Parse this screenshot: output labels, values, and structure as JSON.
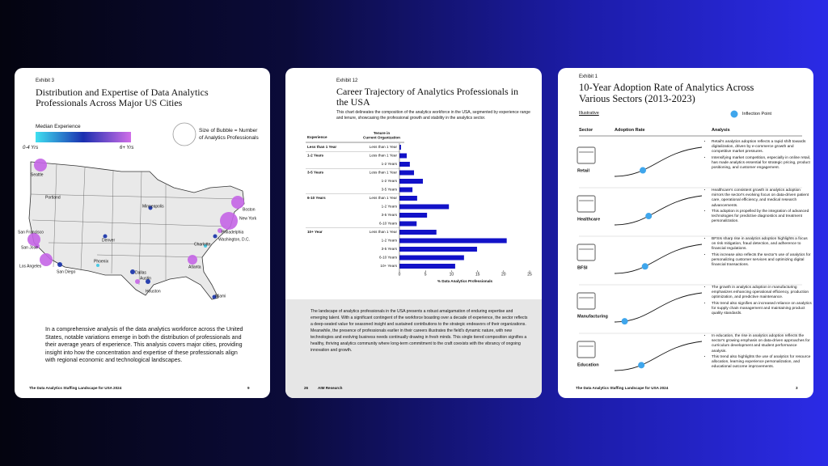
{
  "left_page": {
    "exhibit": "Exhibit 3",
    "title": "Distribution and Expertise of Data Analytics Professionals Across Major US Cities",
    "legend": {
      "color_title": "Median Experience",
      "color_min": "0-4 Yrs",
      "color_max": "6+ Yrs",
      "size_note": "Size of Bubble = Number of Analytics Professionals"
    },
    "cities": [
      "Seattle",
      "Portland",
      "Minneapolis",
      "Boston",
      "New York",
      "Philadelphia",
      "Washington, D.C.",
      "Denver",
      "San Francisco",
      "San Jose",
      "Charlotte",
      "Phoenix",
      "Los Angeles",
      "San Diego",
      "Dallas",
      "Atlanta",
      "Austin",
      "Houston",
      "Miami"
    ],
    "body": "In a comprehensive analysis of the data analytics workforce across the United States, notable variations emerge in both the distribution of professionals and their average years of experience. This analysis covers major cities, providing insight into how the concentration and expertise of these professionals align with regional economic and technological landscapes.",
    "footer": "The Data Analytics Staffing Landscape for USA 2024",
    "page_number": "9"
  },
  "middle_page": {
    "exhibit": "Exhibit 12",
    "body": "The landscape of analytics professionals in the USA presents a robust amalgamation of enduring expertise and emerging talent. With a significant contingent of the workforce boasting over a decade of experience, the sector reflects a deep-seated value for seasoned insight and sustained contributions to the strategic endeavors of their organizations. Meanwhile, the presence of professionals earlier in their careers illustrates the field's dynamic nature, with new technologies and evolving business needs continually drawing in fresh minds. This single tiered composition signifies a healthy, thriving analytics community where long-term commitment to the craft coexists with the vibrancy of ongoing innovation and growth.",
    "page_number": "26",
    "footer": "AIM Research"
  },
  "chart_data": {
    "type": "bar",
    "orientation": "horizontal",
    "title": "Career Trajectory of Analytics Professionals in the USA",
    "subtitle": "This chart delineates the composition of the analytics workforce in the USA, segmented by experience range and tenure, showcasing the professional growth and stability in the analytics sector.",
    "group_header": "Experience",
    "category_header": "Tenure in Current Organization",
    "xlabel": "% Data Analytics Professionals",
    "groups": [
      "Less than 1 Year",
      "1-2 Years",
      null,
      "3-5 Years",
      null,
      null,
      "6-10 Years",
      null,
      null,
      null,
      "10+ Year",
      null,
      null,
      null,
      null
    ],
    "categories": [
      "Less than 1 Year",
      "Less than 1 Year",
      "1-2 Years",
      "Less than 1 Year",
      "1-2 Years",
      "3-5 Years",
      "Less than 1 Year",
      "1-2 Years",
      "3-5 Years",
      "6-10 Years",
      "Less than 1 Year",
      "1-2 Years",
      "3-5 Years",
      "6-10 Years",
      "10+ Years"
    ],
    "values": [
      0.3,
      1.4,
      2.0,
      2.8,
      4.5,
      2.5,
      3.4,
      9.5,
      5.3,
      3.3,
      7.1,
      20.6,
      14.9,
      12.4,
      10.7
    ],
    "color": "#1212c8",
    "xlim": [
      0,
      25
    ],
    "xticks": [
      0,
      5,
      10,
      15,
      20,
      25
    ]
  },
  "right_page": {
    "exhibit": "Exhibit 1",
    "title": "10-Year Adoption Rate of Analytics Across Various Sectors (2013-2023)",
    "note": "Illustrative",
    "legend": "Inflection Point",
    "columns": [
      "Sector",
      "Adoption Rate",
      "Analysis"
    ],
    "sectors": [
      {
        "name": "Retail",
        "analysis": [
          "Retail's analytics adoption reflects a rapid shift towards digitalization, driven by e-commerce growth and competitive market pressures.",
          "Intensifying market competition, especially in online retail, has made analytics essential for strategic pricing, product positioning, and customer engagement."
        ]
      },
      {
        "name": "Healthcare",
        "analysis": [
          "Healthcare's consistent growth in analytics adoption mirrors the sector's evolving focus on data-driven patient care, operational efficiency, and medical research advancements.",
          "This adoption is propelled by the integration of advanced technologies for predictive diagnostics and treatment personalization."
        ]
      },
      {
        "name": "BFSI",
        "analysis": [
          "BFSIs sharp rise in analytics adoption highlights a focus on risk mitigation, fraud detection, and adherence to financial regulations.",
          "This increase also reflects the sector's use of analytics for personalizing customer services and optimizing digital financial transactions."
        ]
      },
      {
        "name": "Manufacturing",
        "analysis": [
          "The growth in analytics adoption in manufacturing emphasizes enhancing operational efficiency, production optimization, and predictive maintenance.",
          "This trend also signifies an increased reliance on analytics for supply chain management and maintaining product quality standards."
        ]
      },
      {
        "name": "Education",
        "analysis": [
          "In education, the rise in analytics adoption reflects the sector's growing emphasis on data-driven approaches for curriculum development and student performance analysis.",
          "This trend also highlights the use of analytics for resource allocation, learning experience personalization, and educational outcome improvements."
        ]
      }
    ],
    "footer": "The Data Analytics Staffing Landscape for USA 2024",
    "page_number": "3"
  }
}
